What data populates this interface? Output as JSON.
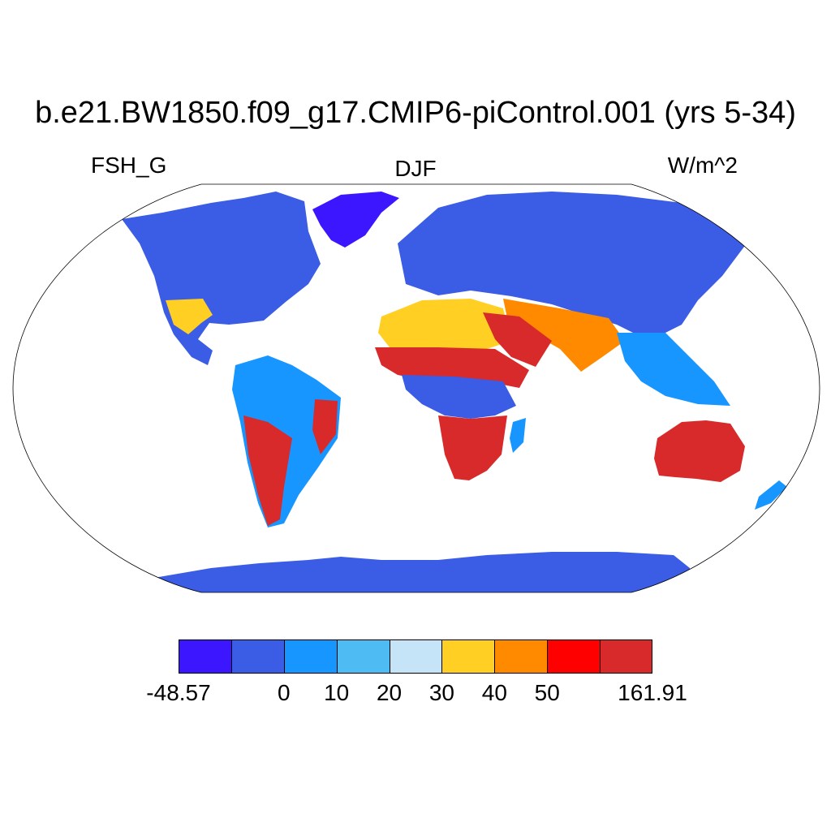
{
  "title": "b.e21.BW1850.f09_g17.CMIP6-piControl.001 (yrs 5-34)",
  "left_label": "FSH_G",
  "center_label": "DJF",
  "right_label": "W/m^2",
  "projection": "robinson",
  "colorbar": {
    "colors": [
      "#3c16ff",
      "#3b5ce4",
      "#1796ff",
      "#4ebcf2",
      "#c5e4f7",
      "#ffcf23",
      "#ff8a00",
      "#ff0000",
      "#d82a2a"
    ],
    "labels": [
      {
        "text": "-48.57",
        "boundary": 0
      },
      {
        "text": "0",
        "boundary": 2
      },
      {
        "text": "10",
        "boundary": 3
      },
      {
        "text": "20",
        "boundary": 4
      },
      {
        "text": "30",
        "boundary": 5
      },
      {
        "text": "40",
        "boundary": 6
      },
      {
        "text": "50",
        "boundary": 7
      },
      {
        "text": "161.91",
        "boundary": 9
      }
    ]
  },
  "regions": {
    "greenland": "#3c16ff",
    "antarctica": "#3b5ce4",
    "australia": "#d82a2a",
    "sahara": "#ffcf23",
    "arabia": "#d82a2a",
    "sahel": "#d82a2a",
    "southern_africa": "#d82a2a",
    "central_africa": "#3b5ce4",
    "north_america": "#3b5ce4",
    "eurasia": "#3b5ce4",
    "south_asia": "#ff8a00",
    "southeast_asia": "#1796ff",
    "amazon": "#1796ff",
    "brazil_east": "#d82a2a",
    "argentina": "#d82a2a"
  }
}
